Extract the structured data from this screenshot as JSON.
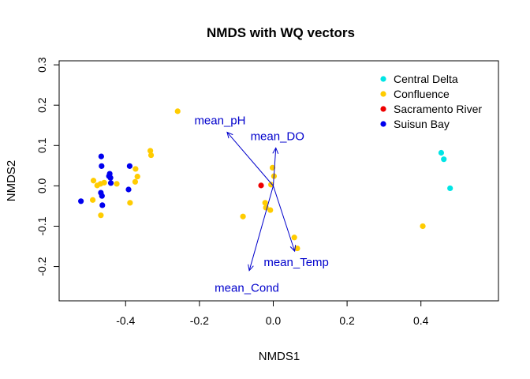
{
  "chart_data": {
    "type": "scatter",
    "title": "NMDS with WQ vectors",
    "xlabel": "NMDS1",
    "ylabel": "NMDS2",
    "xlim": [
      -0.58,
      0.61
    ],
    "ylim": [
      -0.285,
      0.31
    ],
    "xticks": [
      -0.4,
      -0.2,
      0.0,
      0.2,
      0.4
    ],
    "xtick_labels": [
      "-0.4",
      "-0.2",
      "0.0",
      "0.2",
      "0.4"
    ],
    "yticks": [
      -0.2,
      -0.1,
      0.0,
      0.1,
      0.2,
      0.3
    ],
    "ytick_labels": [
      "-0.2",
      "-0.1",
      "0.0",
      "0.1",
      "0.2",
      "0.3"
    ],
    "grid": false,
    "legend_position": "top-right",
    "series": [
      {
        "name": "Central Delta",
        "color": "#00e5e5",
        "points": [
          [
            0.455,
            0.082
          ],
          [
            0.462,
            0.066
          ],
          [
            0.479,
            -0.006
          ]
        ]
      },
      {
        "name": "Confluence",
        "color": "#ffcc00",
        "points": [
          [
            -0.259,
            0.185
          ],
          [
            -0.333,
            0.087
          ],
          [
            -0.331,
            0.076
          ],
          [
            -0.373,
            0.042
          ],
          [
            -0.368,
            0.023
          ],
          [
            -0.374,
            0.01
          ],
          [
            -0.388,
            -0.042
          ],
          [
            -0.487,
            0.013
          ],
          [
            -0.468,
            0.005
          ],
          [
            -0.477,
            0.001
          ],
          [
            -0.458,
            0.008
          ],
          [
            -0.424,
            0.005
          ],
          [
            -0.489,
            -0.035
          ],
          [
            -0.467,
            -0.073
          ],
          [
            -0.082,
            -0.076
          ],
          [
            -0.022,
            -0.042
          ],
          [
            -0.02,
            -0.054
          ],
          [
            -0.008,
            -0.06
          ],
          [
            -0.006,
            0.003
          ],
          [
            -0.002,
            0.045
          ],
          [
            0.002,
            0.024
          ],
          [
            0.057,
            -0.128
          ],
          [
            0.065,
            -0.155
          ],
          [
            0.405,
            -0.1
          ]
        ]
      },
      {
        "name": "Sacramento River",
        "color": "#ee0000",
        "points": [
          [
            -0.033,
            0.001
          ]
        ]
      },
      {
        "name": "Suisun Bay",
        "color": "#0000ee",
        "points": [
          [
            -0.521,
            -0.038
          ],
          [
            -0.466,
            0.073
          ],
          [
            -0.465,
            0.049
          ],
          [
            -0.443,
            0.03
          ],
          [
            -0.441,
            0.02
          ],
          [
            -0.44,
            0.007
          ],
          [
            -0.445,
            0.024
          ],
          [
            -0.467,
            -0.017
          ],
          [
            -0.464,
            -0.025
          ],
          [
            -0.463,
            -0.048
          ],
          [
            -0.389,
            0.049
          ],
          [
            -0.392,
            -0.009
          ]
        ]
      }
    ],
    "vectors": {
      "color": "#0000cc",
      "origin": [
        0,
        0
      ],
      "items": [
        {
          "name": "mean_pH",
          "x": -0.125,
          "y": 0.133
        },
        {
          "name": "mean_DO",
          "x": 0.007,
          "y": 0.094
        },
        {
          "name": "mean_Temp",
          "x": 0.058,
          "y": -0.162
        },
        {
          "name": "mean_Cond",
          "x": -0.065,
          "y": -0.21
        }
      ]
    }
  }
}
